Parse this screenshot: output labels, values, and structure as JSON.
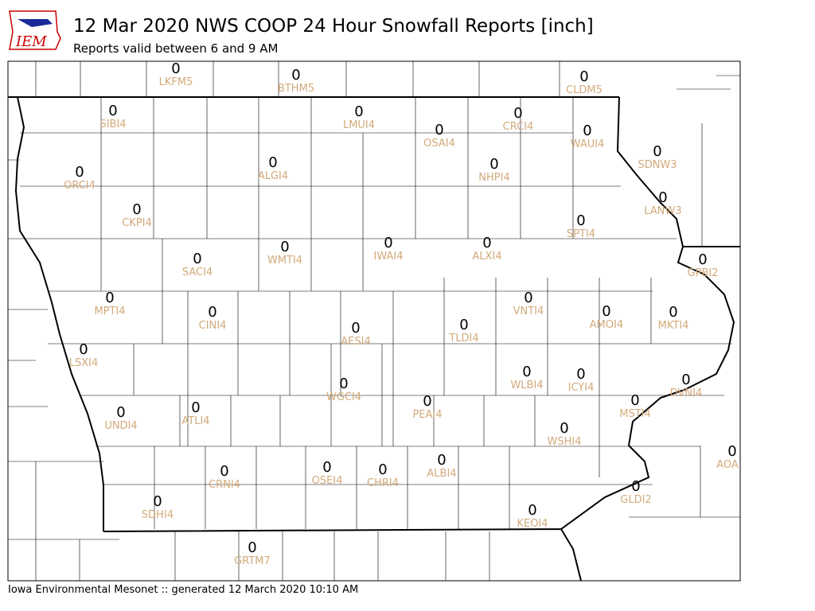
{
  "header": {
    "logo": "IEM",
    "title": "12 Mar 2020 NWS COOP 24 Hour Snowfall Reports [inch]",
    "subtitle": "Reports valid between 6 and 9 AM"
  },
  "stations": [
    {
      "id": "LKFM5",
      "value": 0
    },
    {
      "id": "BTHM5",
      "value": 0
    },
    {
      "id": "CLDM5",
      "value": 0
    },
    {
      "id": "SIBI4",
      "value": 0
    },
    {
      "id": "LMUI4",
      "value": 0
    },
    {
      "id": "CRCI4",
      "value": 0
    },
    {
      "id": "OSAI4",
      "value": 0
    },
    {
      "id": "WAUI4",
      "value": 0
    },
    {
      "id": "SDNW3",
      "value": 0
    },
    {
      "id": "ORCI4",
      "value": 0
    },
    {
      "id": "ALGI4",
      "value": 0
    },
    {
      "id": "NHPI4",
      "value": 0
    },
    {
      "id": "LANW3",
      "value": 0
    },
    {
      "id": "CKPI4",
      "value": 0
    },
    {
      "id": "SPTI4",
      "value": 0
    },
    {
      "id": "IWAI4",
      "value": 0
    },
    {
      "id": "ALXI4",
      "value": 0
    },
    {
      "id": "WMTI4",
      "value": 0
    },
    {
      "id": "SACI4",
      "value": 0
    },
    {
      "id": "GPBI2",
      "value": 0
    },
    {
      "id": "MPTI4",
      "value": 0
    },
    {
      "id": "VNTI4",
      "value": 0
    },
    {
      "id": "CINI4",
      "value": 0
    },
    {
      "id": "AMOI4",
      "value": 0
    },
    {
      "id": "MKTI4",
      "value": 0
    },
    {
      "id": "AESI4",
      "value": 0
    },
    {
      "id": "TLDI4",
      "value": 0
    },
    {
      "id": "LSXI4",
      "value": 0
    },
    {
      "id": "WLBI4",
      "value": 0
    },
    {
      "id": "ICYI4",
      "value": 0
    },
    {
      "id": "DVNI4",
      "value": 0
    },
    {
      "id": "WGCI4",
      "value": 0
    },
    {
      "id": "PEAI4",
      "value": 0
    },
    {
      "id": "MSTI4",
      "value": 0
    },
    {
      "id": "ATLI4",
      "value": 0
    },
    {
      "id": "UNDI4",
      "value": 0
    },
    {
      "id": "WSHI4",
      "value": 0
    },
    {
      "id": "AOA",
      "value": 0
    },
    {
      "id": "CRNI4",
      "value": 0
    },
    {
      "id": "OSEI4",
      "value": 0
    },
    {
      "id": "CHRI4",
      "value": 0
    },
    {
      "id": "ALBI4",
      "value": 0
    },
    {
      "id": "GLDI2",
      "value": 0
    },
    {
      "id": "SDHI4",
      "value": 0
    },
    {
      "id": "KEOI4",
      "value": 0
    },
    {
      "id": "GRTM7",
      "value": 0
    }
  ],
  "footer": "Iowa Environmental Mesonet :: generated 12 March 2020 10:10 AM"
}
